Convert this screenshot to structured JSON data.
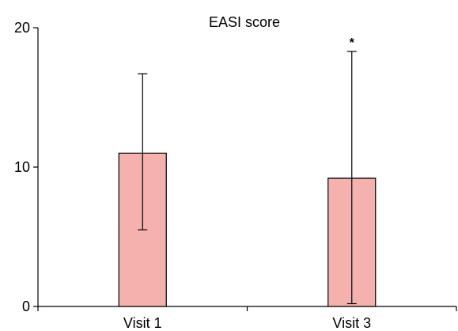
{
  "chart_data": {
    "type": "bar",
    "title": "EASI score",
    "xlabel": "",
    "ylabel": "",
    "categories": [
      "Visit 1",
      "Visit 3"
    ],
    "values": [
      11.0,
      9.2
    ],
    "error_upper": [
      16.7,
      18.3
    ],
    "error_lower": [
      5.5,
      0.2
    ],
    "annotations": [
      "",
      "*"
    ],
    "ylim": [
      0,
      20
    ],
    "yticks": [
      "0",
      "10",
      "20"
    ],
    "grid": false,
    "legend": "none",
    "bar_color": "#f4b1ad"
  }
}
